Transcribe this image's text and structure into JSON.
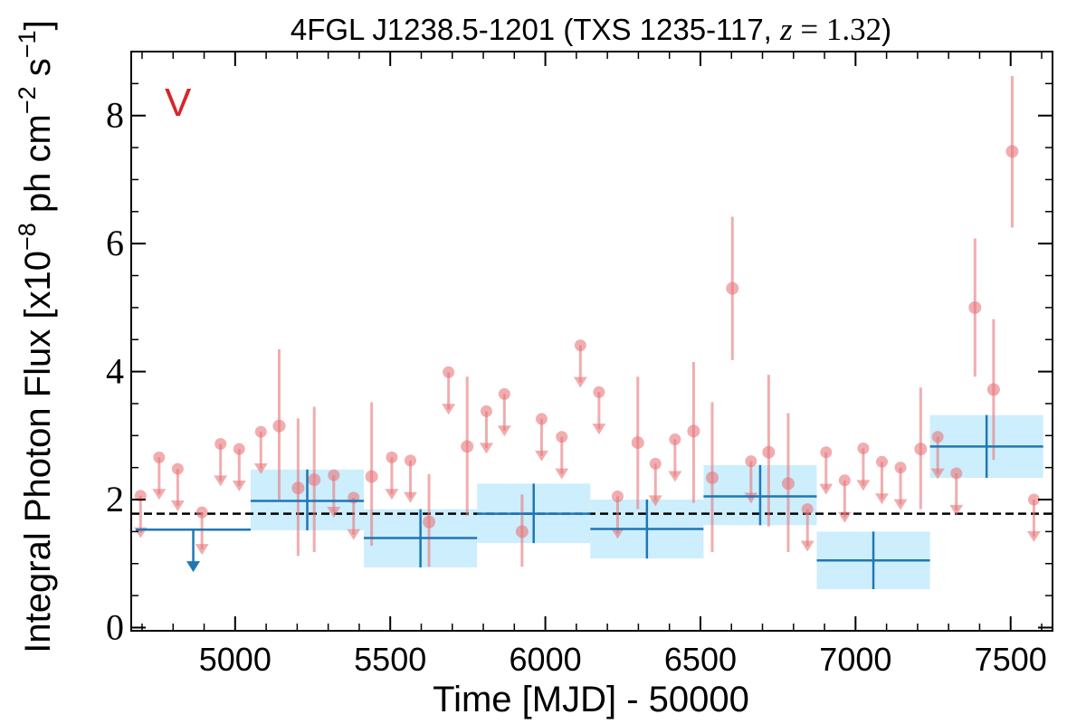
{
  "chart_data": {
    "type": "scatter",
    "title": {
      "main": "4FGL J1238.5-1201 (TXS 1235-117, ",
      "z_symbol": "z",
      "equals": " = ",
      "z_value": "1.32",
      "close": ")"
    },
    "panel_letter": "V",
    "xlabel": "Time [MJD] - 50000",
    "ylabel": {
      "prefix": "Integral Photon Flux [x10",
      "exp1": "−8",
      "mid": " ph cm",
      "exp2": "−2",
      "mid2": " s",
      "exp3": "−1",
      "suffix": "]"
    },
    "xlim": [
      4665,
      7635
    ],
    "ylim": [
      -0.05,
      9.0
    ],
    "x_ticks": [
      "5000",
      "5500",
      "6000",
      "6500",
      "7000",
      "7500"
    ],
    "y_ticks": [
      "0",
      "2",
      "4",
      "6",
      "8"
    ],
    "grid": false,
    "mean_flux": 1.78,
    "colors": {
      "points": "#e8777a",
      "bins": "#1f77b4",
      "bin_band": "#cdeefc",
      "mean_line": "#000000",
      "panel_letter": "#d62728"
    },
    "series": [
      {
        "kind": "monthly",
        "detections": [
          {
            "x": 5142,
            "y": 3.15,
            "lo": 2.0,
            "hi": 4.35
          },
          {
            "x": 5203,
            "y": 2.18,
            "lo": 1.12,
            "hi": 3.27
          },
          {
            "x": 5255,
            "y": 2.31,
            "lo": 1.18,
            "hi": 3.45
          },
          {
            "x": 5440,
            "y": 2.36,
            "lo": 1.28,
            "hi": 3.52
          },
          {
            "x": 5625,
            "y": 1.65,
            "lo": 0.95,
            "hi": 2.4
          },
          {
            "x": 5748,
            "y": 2.83,
            "lo": 1.75,
            "hi": 3.92
          },
          {
            "x": 5925,
            "y": 1.5,
            "lo": 0.95,
            "hi": 2.08
          },
          {
            "x": 6298,
            "y": 2.89,
            "lo": 1.85,
            "hi": 3.92
          },
          {
            "x": 6478,
            "y": 3.07,
            "lo": 1.95,
            "hi": 4.15
          },
          {
            "x": 6538,
            "y": 2.34,
            "lo": 1.18,
            "hi": 3.52
          },
          {
            "x": 6603,
            "y": 5.3,
            "lo": 4.18,
            "hi": 6.42
          },
          {
            "x": 6720,
            "y": 2.74,
            "lo": 1.58,
            "hi": 3.95
          },
          {
            "x": 6783,
            "y": 2.25,
            "lo": 1.18,
            "hi": 3.35
          },
          {
            "x": 7210,
            "y": 2.79,
            "lo": 1.85,
            "hi": 3.75
          },
          {
            "x": 7385,
            "y": 5.0,
            "lo": 3.92,
            "hi": 6.08
          },
          {
            "x": 7445,
            "y": 3.72,
            "lo": 2.62,
            "hi": 4.82
          },
          {
            "x": 7505,
            "y": 7.44,
            "lo": 6.25,
            "hi": 8.62
          }
        ],
        "upper_limits": [
          {
            "x": 4695,
            "y": 2.06
          },
          {
            "x": 4755,
            "y": 2.66
          },
          {
            "x": 4815,
            "y": 2.48
          },
          {
            "x": 4893,
            "y": 1.8
          },
          {
            "x": 4953,
            "y": 2.87
          },
          {
            "x": 5013,
            "y": 2.79
          },
          {
            "x": 5083,
            "y": 3.06
          },
          {
            "x": 5318,
            "y": 2.38
          },
          {
            "x": 5382,
            "y": 2.03
          },
          {
            "x": 5505,
            "y": 2.66
          },
          {
            "x": 5565,
            "y": 2.61
          },
          {
            "x": 5688,
            "y": 3.99
          },
          {
            "x": 5810,
            "y": 3.38
          },
          {
            "x": 5868,
            "y": 3.65
          },
          {
            "x": 5988,
            "y": 3.26
          },
          {
            "x": 6053,
            "y": 2.98
          },
          {
            "x": 6113,
            "y": 4.41
          },
          {
            "x": 6173,
            "y": 3.68
          },
          {
            "x": 6233,
            "y": 2.05
          },
          {
            "x": 6355,
            "y": 2.56
          },
          {
            "x": 6418,
            "y": 2.94
          },
          {
            "x": 6663,
            "y": 2.6
          },
          {
            "x": 6845,
            "y": 1.85
          },
          {
            "x": 6905,
            "y": 2.74
          },
          {
            "x": 6965,
            "y": 2.3
          },
          {
            "x": 7025,
            "y": 2.8
          },
          {
            "x": 7085,
            "y": 2.59
          },
          {
            "x": 7145,
            "y": 2.5
          },
          {
            "x": 7265,
            "y": 2.98
          },
          {
            "x": 7325,
            "y": 2.41
          },
          {
            "x": 7575,
            "y": 2.0
          }
        ]
      },
      {
        "kind": "binned",
        "bins": [
          {
            "x0": 4680,
            "x1": 5050,
            "ul": 1.53
          },
          {
            "x0": 5050,
            "x1": 5415,
            "y": 1.98,
            "lo": 1.52,
            "hi": 2.47,
            "band_lo": 1.52,
            "band_hi": 2.47
          },
          {
            "x0": 5415,
            "x1": 5780,
            "y": 1.4,
            "lo": 0.94,
            "hi": 1.85,
            "band_lo": 0.94,
            "band_hi": 1.85
          },
          {
            "x0": 5780,
            "x1": 6145,
            "y": 1.78,
            "lo": 1.32,
            "hi": 2.25,
            "band_lo": 1.32,
            "band_hi": 2.25
          },
          {
            "x0": 6145,
            "x1": 6510,
            "y": 1.54,
            "lo": 1.08,
            "hi": 2.0,
            "band_lo": 1.08,
            "band_hi": 2.0
          },
          {
            "x0": 6510,
            "x1": 6875,
            "y": 2.05,
            "lo": 1.6,
            "hi": 2.54,
            "band_lo": 1.6,
            "band_hi": 2.54
          },
          {
            "x0": 6875,
            "x1": 7240,
            "y": 1.05,
            "lo": 0.6,
            "hi": 1.5,
            "band_lo": 0.6,
            "band_hi": 1.5
          },
          {
            "x0": 7240,
            "x1": 7605,
            "y": 2.83,
            "lo": 2.34,
            "hi": 3.32,
            "band_lo": 2.34,
            "band_hi": 3.32
          }
        ]
      }
    ]
  }
}
